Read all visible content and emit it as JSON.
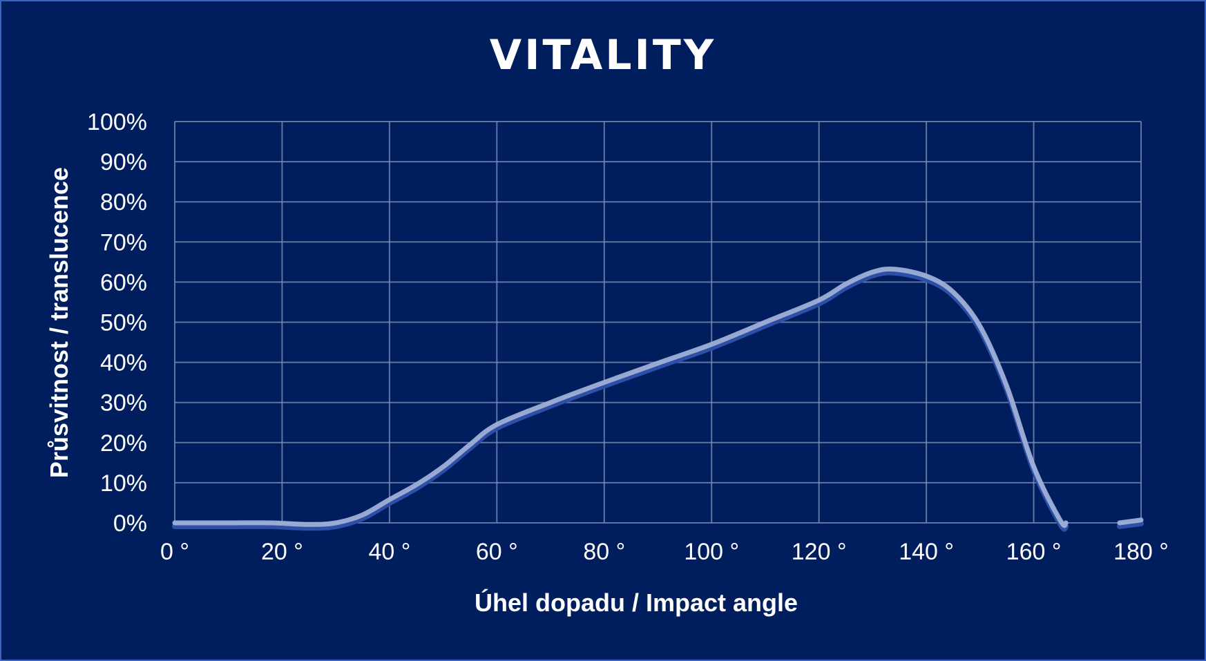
{
  "chart_data": {
    "type": "line",
    "title": "VITALITY",
    "xlabel": "Úhel dopadu / Impact angle",
    "ylabel": "Průsvitnost / translucence",
    "xlim": [
      0,
      180
    ],
    "ylim": [
      0,
      100
    ],
    "x_ticks": [
      0,
      20,
      40,
      60,
      80,
      100,
      120,
      140,
      160,
      180
    ],
    "x_tick_labels": [
      "0 °",
      "20 °",
      "40 °",
      "60 °",
      "80 °",
      "100 °",
      "120 °",
      "140 °",
      "160 °",
      "180 °"
    ],
    "y_ticks": [
      0,
      10,
      20,
      30,
      40,
      50,
      60,
      70,
      80,
      90,
      100
    ],
    "y_tick_labels": [
      "0%",
      "10%",
      "20%",
      "30%",
      "40%",
      "50%",
      "60%",
      "70%",
      "80%",
      "90%",
      "100%"
    ],
    "grid": true,
    "legend": "none",
    "series": [
      {
        "x": [
          0,
          10,
          18,
          25,
          30,
          35,
          40,
          45,
          50,
          55,
          60,
          70,
          80,
          90,
          100,
          110,
          120,
          125,
          130,
          134,
          140,
          145,
          150,
          155,
          160,
          165,
          166
        ],
        "y": [
          0,
          0,
          0,
          -0.4,
          0,
          2,
          5.8,
          9.5,
          14,
          19.5,
          24.5,
          30,
          35,
          39.8,
          44.5,
          50,
          55.5,
          59.5,
          62.5,
          63.2,
          61.5,
          57.5,
          49,
          34,
          14,
          0.5,
          0
        ]
      },
      {
        "x": [
          176,
          180
        ],
        "y": [
          0,
          0.7
        ]
      }
    ],
    "colors": {
      "background": "#001E5E",
      "border": "#3A63C6",
      "grid": "#7A8BB7",
      "line": "#9FB0D6",
      "line_shadow": "#2E4FA8",
      "text": "#FFFFFF"
    }
  }
}
